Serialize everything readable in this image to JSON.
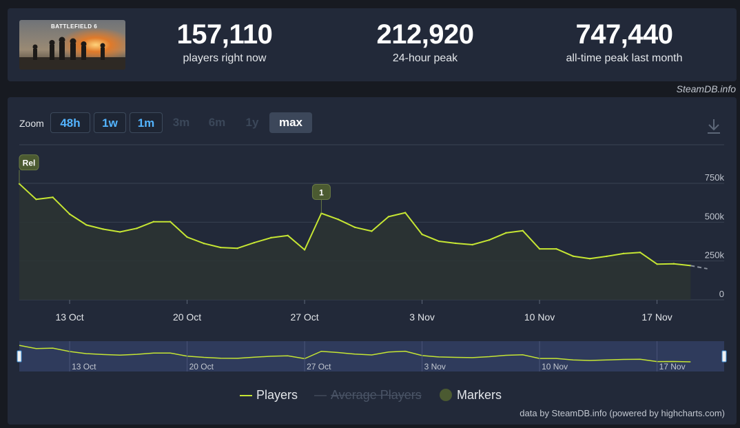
{
  "header": {
    "game_title": "BATTLEFIELD 6",
    "stats": [
      {
        "value": "157,110",
        "label": "players right now"
      },
      {
        "value": "212,920",
        "label": "24-hour peak"
      },
      {
        "value": "747,440",
        "label": "all-time peak last month"
      }
    ],
    "credit": "SteamDB.info"
  },
  "toolbar": {
    "zoom_label": "Zoom",
    "zoom_options": [
      {
        "label": "48h",
        "state": "enabled"
      },
      {
        "label": "1w",
        "state": "enabled"
      },
      {
        "label": "1m",
        "state": "enabled"
      },
      {
        "label": "3m",
        "state": "disabled"
      },
      {
        "label": "6m",
        "state": "disabled"
      },
      {
        "label": "1y",
        "state": "disabled"
      },
      {
        "label": "max",
        "state": "selected"
      }
    ],
    "download_icon": "download-icon"
  },
  "colors": {
    "players": "#c6e633",
    "marker": "#4b5a31",
    "background": "#222939",
    "grid": "#3a4252",
    "navigator_mask": "#3a4a7a"
  },
  "chart_data": {
    "type": "line",
    "x_unit": "date",
    "series": [
      {
        "name": "Players",
        "x": [
          "2025-10-10",
          "2025-10-11",
          "2025-10-12",
          "2025-10-13",
          "2025-10-14",
          "2025-10-15",
          "2025-10-16",
          "2025-10-17",
          "2025-10-18",
          "2025-10-19",
          "2025-10-20",
          "2025-10-21",
          "2025-10-22",
          "2025-10-23",
          "2025-10-24",
          "2025-10-25",
          "2025-10-26",
          "2025-10-27",
          "2025-10-28",
          "2025-10-29",
          "2025-10-30",
          "2025-10-31",
          "2025-11-01",
          "2025-11-02",
          "2025-11-03",
          "2025-11-04",
          "2025-11-05",
          "2025-11-06",
          "2025-11-07",
          "2025-11-08",
          "2025-11-09",
          "2025-11-10",
          "2025-11-11",
          "2025-11-12",
          "2025-11-13",
          "2025-11-14",
          "2025-11-15",
          "2025-11-16",
          "2025-11-17",
          "2025-11-18",
          "2025-11-19"
        ],
        "values": [
          747000,
          647000,
          660000,
          552000,
          482000,
          455000,
          437000,
          460000,
          503000,
          503000,
          404000,
          363000,
          337000,
          332000,
          368000,
          400000,
          414000,
          322000,
          557000,
          518000,
          467000,
          442000,
          535000,
          561000,
          421000,
          377000,
          364000,
          355000,
          385000,
          431000,
          445000,
          328000,
          328000,
          281000,
          265000,
          280000,
          298000,
          305000,
          230000,
          232000,
          220000
        ]
      },
      {
        "name": "Average Players",
        "hidden": true,
        "values": []
      }
    ],
    "incomplete_segment": {
      "x": [
        "2025-11-19",
        "2025-11-20"
      ],
      "values": [
        220000,
        200000
      ]
    },
    "markers": [
      {
        "label": "Rel",
        "x": "2025-10-10"
      },
      {
        "label": "1",
        "x": "2025-10-28"
      }
    ],
    "ylim": [
      0,
      750000
    ],
    "y_ticks": [
      {
        "value": 0,
        "label": "0"
      },
      {
        "value": 250000,
        "label": "250k"
      },
      {
        "value": 500000,
        "label": "500k"
      },
      {
        "value": 750000,
        "label": "750k"
      }
    ],
    "x_ticks": [
      {
        "x": "2025-10-13",
        "label": "13 Oct"
      },
      {
        "x": "2025-10-20",
        "label": "20 Oct"
      },
      {
        "x": "2025-10-27",
        "label": "27 Oct"
      },
      {
        "x": "2025-11-03",
        "label": "3 Nov"
      },
      {
        "x": "2025-11-10",
        "label": "10 Nov"
      },
      {
        "x": "2025-11-17",
        "label": "17 Nov"
      }
    ],
    "xlim": [
      "2025-10-10",
      "2025-11-21"
    ],
    "grid": true,
    "legend": {
      "placement": "bottom-center",
      "items": [
        {
          "label": "Players",
          "kind": "line",
          "enabled": true
        },
        {
          "label": "Average Players",
          "kind": "line",
          "enabled": false
        },
        {
          "label": "Markers",
          "kind": "dot",
          "enabled": true
        }
      ]
    },
    "navigator": {
      "visible": true,
      "range": [
        "2025-10-10",
        "2025-11-21"
      ],
      "labels": [
        "13 Oct",
        "20 Oct",
        "27 Oct",
        "3 Nov",
        "10 Nov",
        "17 Nov"
      ]
    }
  },
  "footer": {
    "credit": "data by SteamDB.info (powered by highcharts.com)"
  }
}
